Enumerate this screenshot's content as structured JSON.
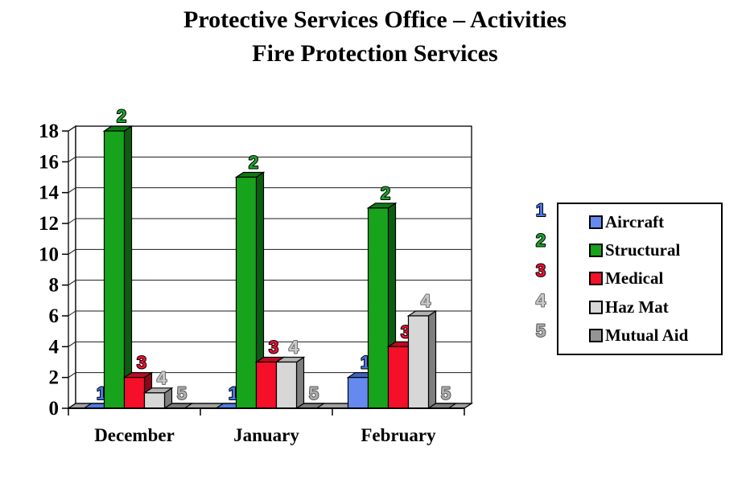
{
  "title": {
    "line1": "Protective Services Office – Activities",
    "line2": "Fire Protection Services"
  },
  "chart_data": {
    "type": "bar",
    "style": "3d-clustered-column",
    "title": "Protective Services Office – Activities / Fire Protection Services",
    "categories": [
      "December",
      "January",
      "February"
    ],
    "series": [
      {
        "number": "1",
        "name": "Aircraft",
        "values": [
          0,
          0,
          2
        ],
        "color": "#6589EE",
        "top_color": "#3D64C8",
        "side_color": "#2C4FA8",
        "zero_color": "#4E7BDF",
        "label_fill": "#4478E8",
        "label_stroke": "#000000"
      },
      {
        "number": "2",
        "name": "Structural",
        "values": [
          18,
          15,
          13
        ],
        "color": "#17A31C",
        "top_color": "#0F7A14",
        "side_color": "#0B5E10",
        "zero_color": "#0F7A14",
        "label_fill": "#1CA32A",
        "label_stroke": "#000000"
      },
      {
        "number": "3",
        "name": "Medical",
        "values": [
          2,
          3,
          4
        ],
        "color": "#F50F28",
        "top_color": "#BE0A20",
        "side_color": "#8C0718",
        "zero_color": "#BE0A20",
        "label_fill": "#F01030",
        "label_stroke": "#000000"
      },
      {
        "number": "4",
        "name": "Haz Mat",
        "values": [
          1,
          3,
          6
        ],
        "color": "#D7D7D7",
        "top_color": "#B2B2B2",
        "side_color": "#7E7E7E",
        "zero_color": "#B2B2B2",
        "label_fill": "#C9C9C9",
        "label_stroke": "#6A6A6A"
      },
      {
        "number": "5",
        "name": "Mutual Aid",
        "values": [
          0,
          0,
          0
        ],
        "color": "#949494",
        "top_color": "#7B7B7B",
        "side_color": "#5C5C5C",
        "zero_color": "#7B7B7B",
        "label_fill": "#AFAFAF",
        "label_stroke": "#555555"
      }
    ],
    "ylim": [
      0,
      18
    ],
    "ytick_step": 2,
    "grid": true,
    "legend_position": "right",
    "wall_color": "#FFFFFF",
    "floor_color": "#A1A1A1"
  }
}
